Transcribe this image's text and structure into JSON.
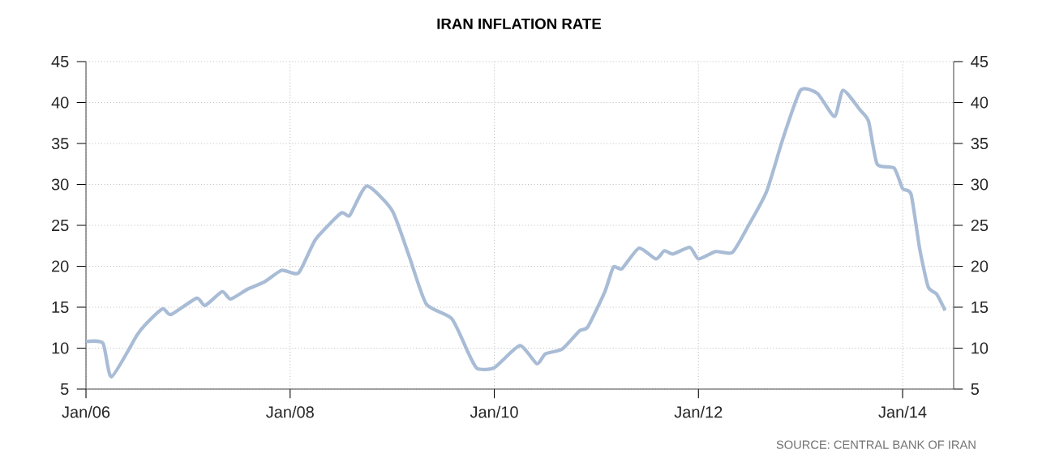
{
  "chart_data": {
    "type": "line",
    "title": "IRAN INFLATION RATE",
    "annotations": [
      "SOURCE: CENTRAL BANK OF IRAN"
    ],
    "x": [
      "2006-01",
      "2006-03",
      "2006-04",
      "2006-07",
      "2006-08",
      "2006-10",
      "2006-11",
      "2007-02",
      "2007-03",
      "2007-05",
      "2007-06",
      "2007-08",
      "2007-10",
      "2007-12",
      "2008-02",
      "2008-04",
      "2008-07",
      "2008-08",
      "2008-10",
      "2009-01",
      "2009-03",
      "2009-05",
      "2009-08",
      "2009-10",
      "2009-11",
      "2010-01",
      "2010-04",
      "2010-06",
      "2010-07",
      "2010-09",
      "2010-11",
      "2010-12",
      "2011-02",
      "2011-03",
      "2011-04",
      "2011-06",
      "2011-08",
      "2011-09",
      "2011-10",
      "2011-12",
      "2012-01",
      "2012-03",
      "2012-05",
      "2012-07",
      "2012-09",
      "2012-11",
      "2013-01",
      "2013-03",
      "2013-05",
      "2013-06",
      "2013-08",
      "2013-09",
      "2013-10",
      "2013-12",
      "2014-01",
      "2014-02",
      "2014-03",
      "2014-04",
      "2014-05",
      "2014-06"
    ],
    "series": [
      {
        "color": "#a9bcd6",
        "values": [
          10.8,
          10.6,
          6.5,
          11.6,
          12.9,
          14.8,
          14.1,
          16.1,
          15.2,
          16.9,
          16.0,
          17.2,
          18.1,
          19.5,
          19.2,
          23.3,
          26.5,
          26.2,
          29.8,
          26.8,
          21.2,
          15.4,
          13.6,
          9.3,
          7.5,
          7.6,
          10.3,
          8.1,
          9.3,
          9.9,
          12.1,
          12.6,
          16.9,
          19.9,
          19.7,
          22.2,
          20.9,
          21.9,
          21.5,
          22.3,
          20.9,
          21.8,
          21.7,
          25.2,
          29.1,
          35.8,
          41.5,
          41.1,
          38.3,
          41.5,
          39.1,
          37.7,
          32.5,
          32.0,
          29.5,
          28.8,
          22.2,
          17.5,
          16.6,
          14.6
        ]
      }
    ],
    "xlim": [
      "2006-01",
      "2014-07"
    ],
    "xticks": [
      {
        "value": "2006-01",
        "label": "Jan/06"
      },
      {
        "value": "2008-01",
        "label": "Jan/08"
      },
      {
        "value": "2010-01",
        "label": "Jan/10"
      },
      {
        "value": "2012-01",
        "label": "Jan/12"
      },
      {
        "value": "2014-01",
        "label": "Jan/14"
      }
    ],
    "ylim": [
      5,
      45
    ],
    "yticks": [
      5,
      10,
      15,
      20,
      25,
      30,
      35,
      40,
      45
    ],
    "y2lim": [
      5,
      45
    ],
    "y2ticks": [
      5,
      10,
      15,
      20,
      25,
      30,
      35,
      40,
      45
    ],
    "grid": true,
    "marker": "none"
  }
}
